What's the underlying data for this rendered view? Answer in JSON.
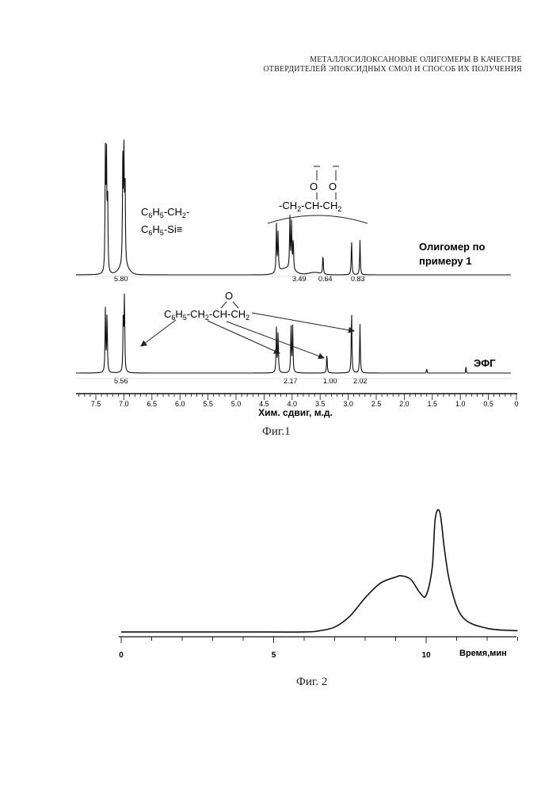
{
  "header": {
    "line1": "МЕТАЛЛОСИЛОКСАНОВЫЕ ОЛИГОМЕРЫ В КАЧЕСТВЕ",
    "line2": "ОТВЕРДИТЕЛЕЙ ЭПОКСИДНЫХ СМОЛ И СПОСОБ ИХ ПОЛУЧЕНИЯ"
  },
  "fig1": {
    "caption": "Фиг.1",
    "top_label_line1": "Олигомер по",
    "top_label_line2": "примеру 1",
    "bottom_label": "ЭФГ",
    "annot_top_line1": "C6H5-CH2-",
    "annot_top_line2": "C6H5-Si≡",
    "struct_top": "-CH2-CH-CH2",
    "struct_top_o": [
      "O",
      "O"
    ],
    "struct_bottom": "C6H5-CH2-CH-CH2",
    "struct_bottom_o": "O",
    "top_integrals": [
      "5.80",
      "3.49",
      "0.64",
      "0.83"
    ],
    "bottom_integrals": [
      "5.56",
      "2.17",
      "1.00",
      "2.02"
    ]
  },
  "chart_data": [
    {
      "type": "line",
      "title": "",
      "xlabel": "Хим. сдвиг, м.д.",
      "xlim": [
        7.8,
        0.0
      ],
      "x_reversed": true,
      "x_ticks": [
        "7.5",
        "7.0",
        "6.5",
        "6.0",
        "5.5",
        "5.0",
        "4.5",
        "4.0",
        "3.5",
        "3.0",
        "2.5",
        "2.0",
        "1.5",
        "1.0",
        "0.5",
        "0"
      ],
      "series": [
        {
          "name": "Олигомер по примеру 1",
          "peaks_ppm": [
            7.33,
            7.31,
            7.29,
            7.02,
            7.0,
            6.98,
            4.28,
            4.25,
            4.04,
            4.01,
            3.98,
            3.45,
            2.94,
            2.79
          ],
          "integrals": [
            5.8,
            3.49,
            0.64,
            0.83
          ]
        },
        {
          "name": "ЭФГ",
          "peaks_ppm": [
            7.33,
            7.3,
            7.01,
            6.99,
            4.28,
            4.25,
            4.02,
            3.99,
            3.38,
            2.94,
            2.79
          ],
          "integrals": [
            5.56,
            2.17,
            1.0,
            2.02
          ]
        }
      ]
    },
    {
      "type": "line",
      "title": "",
      "xlabel": "Время,мин",
      "xlim": [
        0,
        13
      ],
      "x_ticks": [
        "0",
        "5",
        "10"
      ],
      "series": [
        {
          "name": "",
          "x": [
            0,
            2,
            4,
            6,
            6.5,
            7,
            7.5,
            8,
            8.5,
            9,
            9.2,
            9.5,
            9.8,
            10.0,
            10.2,
            10.3,
            10.45,
            10.6,
            10.8,
            11.2,
            12,
            13
          ],
          "y": [
            0.02,
            0.02,
            0.02,
            0.02,
            0.03,
            0.06,
            0.15,
            0.3,
            0.42,
            0.47,
            0.48,
            0.45,
            0.34,
            0.32,
            0.55,
            0.95,
            1.0,
            0.7,
            0.4,
            0.14,
            0.05,
            0.03
          ]
        }
      ]
    }
  ],
  "fig2": {
    "caption": "Фиг. 2",
    "xlabel": "Время,мин"
  }
}
